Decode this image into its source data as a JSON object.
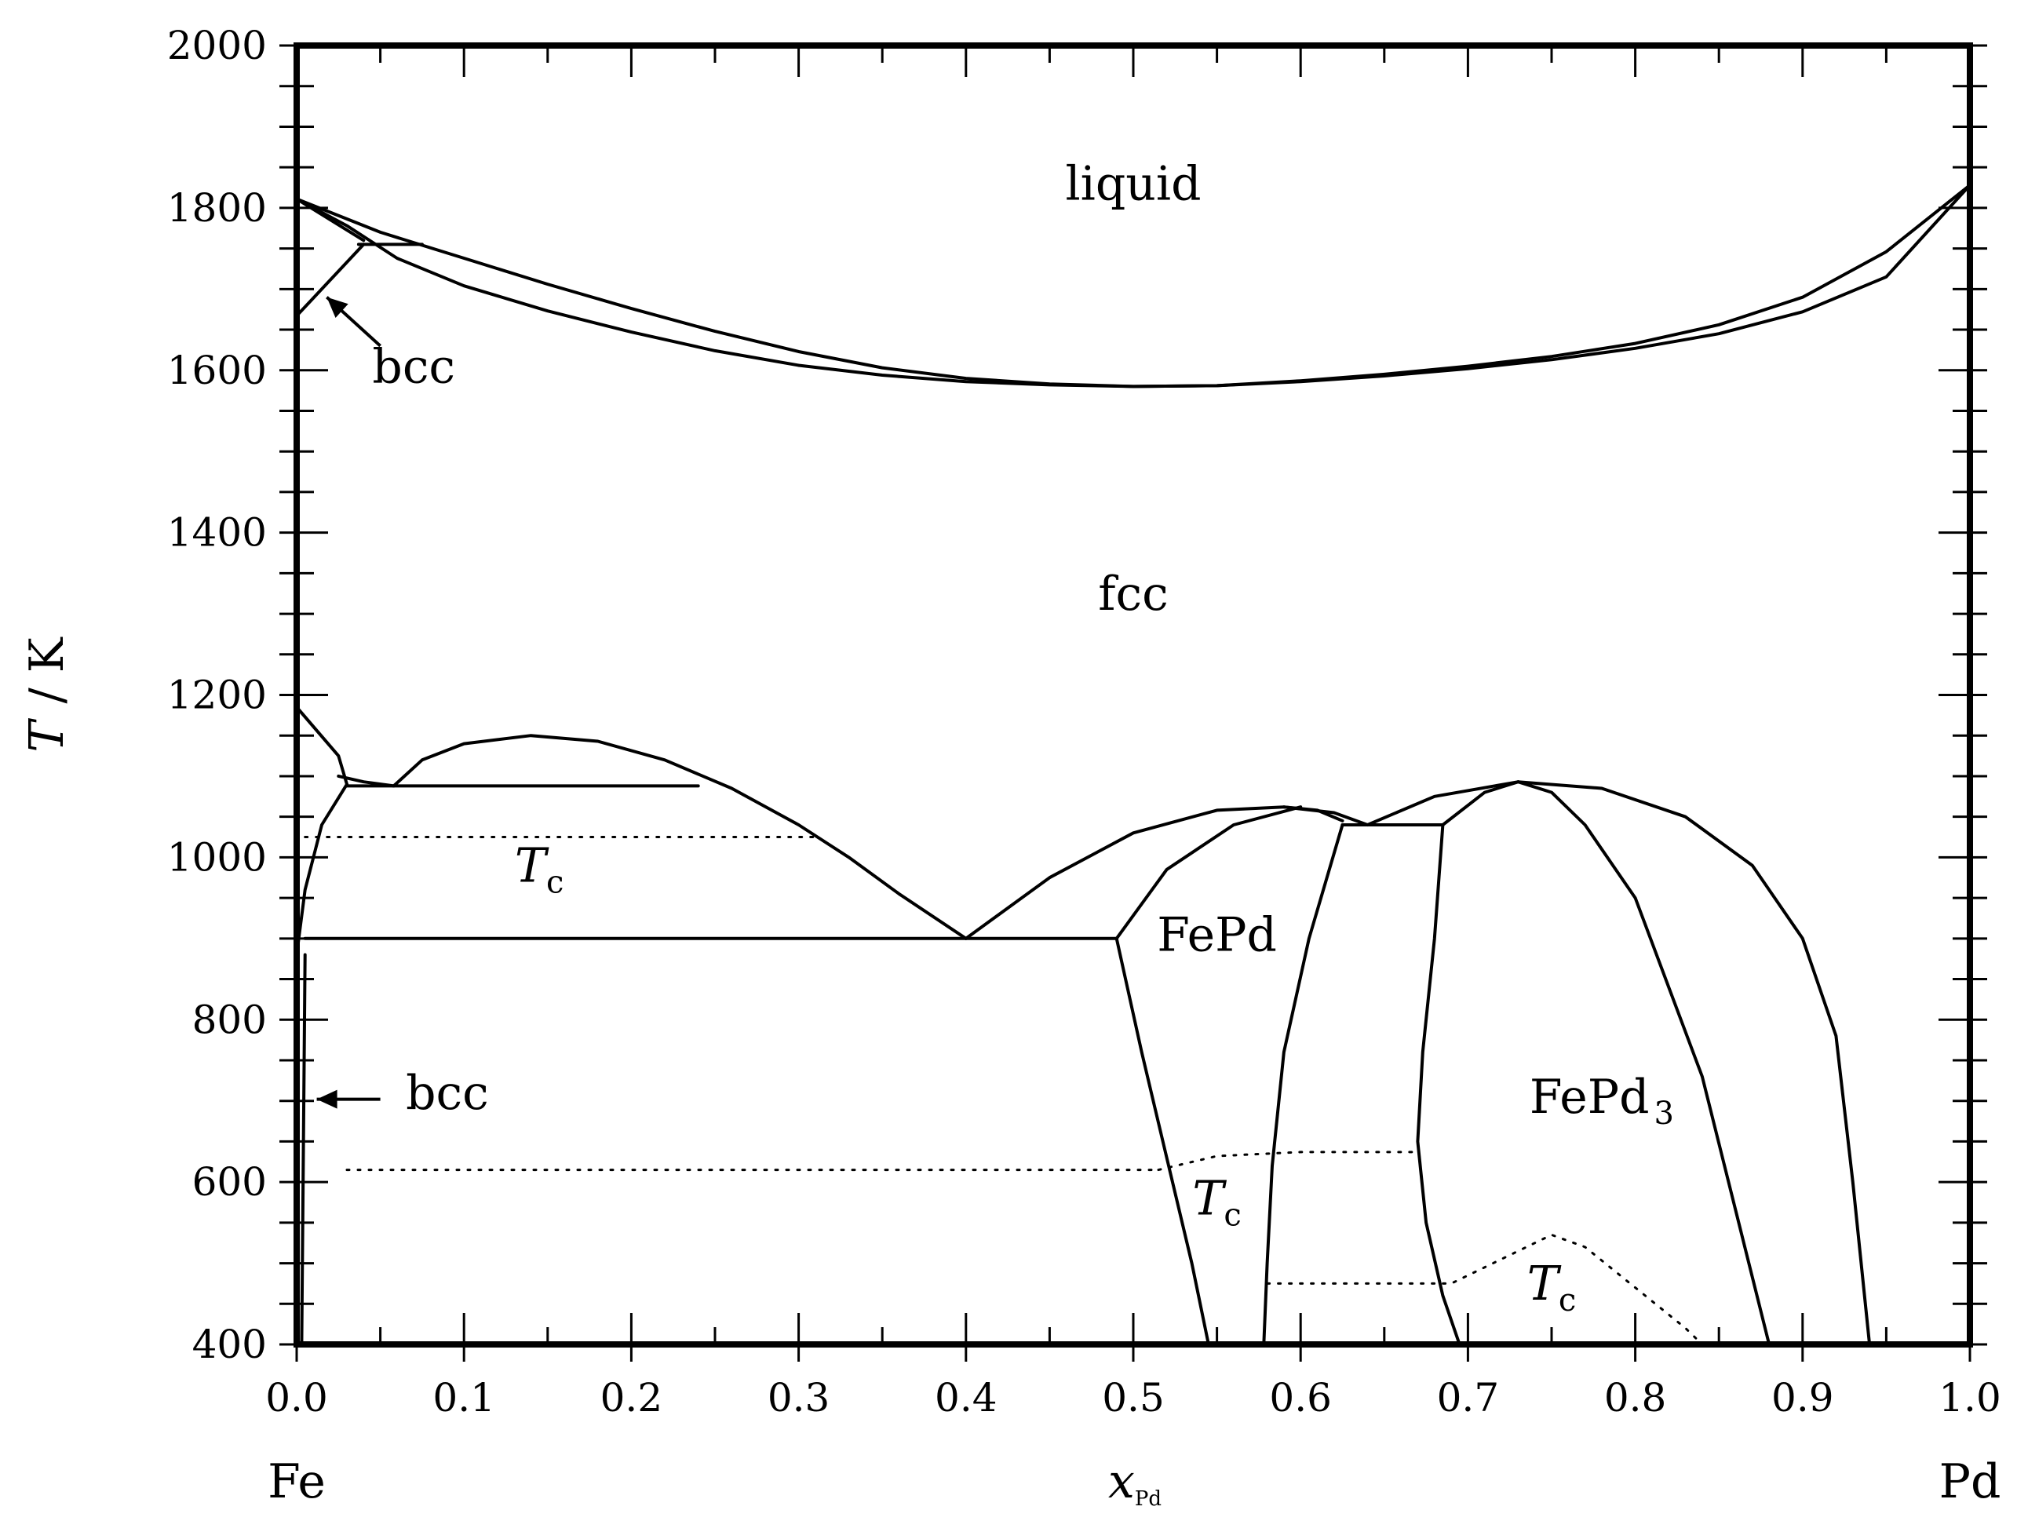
{
  "chart_data": {
    "type": "line",
    "title": "",
    "xlabel": "x",
    "xlabel_sub": "Pd",
    "ylabel_symbol": "T",
    "ylabel_unit": "/ K",
    "xlim": [
      0.0,
      1.0
    ],
    "ylim": [
      400,
      2000
    ],
    "x_ticks": [
      "0.0",
      "0.1",
      "0.2",
      "0.3",
      "0.4",
      "0.5",
      "0.6",
      "0.7",
      "0.8",
      "0.9",
      "1.0"
    ],
    "y_ticks": [
      "400",
      "600",
      "800",
      "1000",
      "1200",
      "1400",
      "1600",
      "1800",
      "2000"
    ],
    "endpoints": {
      "left": "Fe",
      "right": "Pd"
    },
    "regions": [
      {
        "label": "liquid",
        "x": 0.5,
        "y": 1810
      },
      {
        "label": "fcc",
        "x": 0.5,
        "y": 1305
      },
      {
        "label": "FePd",
        "x": 0.55,
        "y": 885
      },
      {
        "label": "FePd",
        "sub": "3",
        "x": 0.78,
        "y": 685
      },
      {
        "label": "bcc",
        "x": 0.07,
        "y": 1585
      },
      {
        "label": "bcc",
        "x": 0.09,
        "y": 690
      }
    ],
    "tc_labels": [
      {
        "symbol": "T",
        "sub": "c",
        "x": 0.145,
        "y": 970
      },
      {
        "symbol": "T",
        "sub": "c",
        "x": 0.55,
        "y": 560
      },
      {
        "symbol": "T",
        "sub": "c",
        "x": 0.75,
        "y": 455
      }
    ],
    "arrows": [
      {
        "from": [
          0.05,
          1630
        ],
        "to": [
          0.018,
          1690
        ]
      },
      {
        "from": [
          0.05,
          702
        ],
        "to": [
          0.012,
          702
        ]
      }
    ],
    "solid_curves": [
      {
        "name": "liquidus",
        "points": [
          [
            0.0,
            1811
          ],
          [
            0.05,
            1770
          ],
          [
            0.1,
            1738
          ],
          [
            0.15,
            1706
          ],
          [
            0.2,
            1676
          ],
          [
            0.25,
            1648
          ],
          [
            0.3,
            1623
          ],
          [
            0.35,
            1603
          ],
          [
            0.4,
            1590
          ],
          [
            0.45,
            1583
          ],
          [
            0.5,
            1580
          ],
          [
            0.55,
            1581
          ],
          [
            0.6,
            1587
          ],
          [
            0.65,
            1595
          ],
          [
            0.7,
            1605
          ],
          [
            0.75,
            1617
          ],
          [
            0.8,
            1633
          ],
          [
            0.85,
            1656
          ],
          [
            0.9,
            1690
          ],
          [
            0.95,
            1746
          ],
          [
            1.0,
            1828
          ]
        ]
      },
      {
        "name": "solidus",
        "points": [
          [
            0.0,
            1811
          ],
          [
            0.03,
            1778
          ],
          [
            0.06,
            1738
          ],
          [
            0.1,
            1704
          ],
          [
            0.15,
            1673
          ],
          [
            0.2,
            1647
          ],
          [
            0.25,
            1624
          ],
          [
            0.3,
            1606
          ],
          [
            0.35,
            1594
          ],
          [
            0.4,
            1586
          ],
          [
            0.45,
            1582
          ],
          [
            0.5,
            1580
          ],
          [
            0.55,
            1581
          ],
          [
            0.6,
            1586
          ],
          [
            0.65,
            1593
          ],
          [
            0.7,
            1602
          ],
          [
            0.75,
            1613
          ],
          [
            0.8,
            1627
          ],
          [
            0.85,
            1645
          ],
          [
            0.9,
            1672
          ],
          [
            0.95,
            1715
          ],
          [
            1.0,
            1828
          ]
        ]
      },
      {
        "name": "bcc-liquidus",
        "points": [
          [
            0.0,
            1811
          ],
          [
            0.04,
            1760
          ]
        ]
      },
      {
        "name": "peritectic-line",
        "points": [
          [
            0.037,
            1755
          ],
          [
            0.075,
            1755
          ]
        ]
      },
      {
        "name": "bcc-solvus-high",
        "points": [
          [
            0.0,
            1667
          ],
          [
            0.015,
            1700
          ],
          [
            0.04,
            1755
          ]
        ]
      },
      {
        "name": "gamma-alpha-left",
        "points": [
          [
            0.0,
            1185
          ],
          [
            0.025,
            1125
          ],
          [
            0.03,
            1090
          ]
        ]
      },
      {
        "name": "bcc-lower-boundary",
        "points": [
          [
            0.0,
            880
          ],
          [
            0.005,
            960
          ],
          [
            0.015,
            1040
          ],
          [
            0.03,
            1090
          ]
        ]
      },
      {
        "name": "miscibility-dome",
        "points": [
          [
            0.058,
            1088
          ],
          [
            0.075,
            1120
          ],
          [
            0.1,
            1140
          ],
          [
            0.14,
            1150
          ],
          [
            0.18,
            1143
          ],
          [
            0.22,
            1120
          ],
          [
            0.26,
            1085
          ],
          [
            0.3,
            1040
          ],
          [
            0.33,
            1000
          ],
          [
            0.36,
            955
          ],
          [
            0.4,
            900
          ]
        ]
      },
      {
        "name": "curve-to-dome",
        "points": [
          [
            0.025,
            1100
          ],
          [
            0.04,
            1093
          ],
          [
            0.058,
            1088
          ]
        ]
      },
      {
        "name": "tie-line-1088",
        "points": [
          [
            0.03,
            1088
          ],
          [
            0.24,
            1088
          ]
        ]
      },
      {
        "name": "eutectoid-line",
        "points": [
          [
            0.005,
            900
          ],
          [
            0.49,
            900
          ]
        ]
      },
      {
        "name": "fepd-order-left",
        "points": [
          [
            0.4,
            900
          ],
          [
            0.45,
            975
          ],
          [
            0.5,
            1030
          ],
          [
            0.55,
            1058
          ],
          [
            0.59,
            1062
          ],
          [
            0.62,
            1055
          ],
          [
            0.64,
            1040
          ]
        ]
      },
      {
        "name": "fepd-inner",
        "points": [
          [
            0.49,
            900
          ],
          [
            0.52,
            985
          ],
          [
            0.56,
            1040
          ],
          [
            0.6,
            1062
          ]
        ]
      },
      {
        "name": "fepd-right-top",
        "points": [
          [
            0.59,
            1062
          ],
          [
            0.61,
            1058
          ],
          [
            0.625,
            1045
          ]
        ]
      },
      {
        "name": "fepd3-dome",
        "points": [
          [
            0.64,
            1040
          ],
          [
            0.68,
            1075
          ],
          [
            0.73,
            1093
          ],
          [
            0.78,
            1085
          ],
          [
            0.83,
            1050
          ],
          [
            0.87,
            990
          ],
          [
            0.9,
            900
          ],
          [
            0.92,
            780
          ],
          [
            0.93,
            600
          ],
          [
            0.94,
            400
          ]
        ]
      },
      {
        "name": "fepd3-inner-left",
        "points": [
          [
            0.685,
            1040
          ],
          [
            0.71,
            1080
          ],
          [
            0.73,
            1093
          ]
        ]
      },
      {
        "name": "fepd3-inner-right",
        "points": [
          [
            0.73,
            1093
          ],
          [
            0.75,
            1080
          ],
          [
            0.77,
            1040
          ],
          [
            0.8,
            950
          ],
          [
            0.84,
            730
          ],
          [
            0.88,
            400
          ]
        ]
      },
      {
        "name": "tie-line-1040",
        "points": [
          [
            0.625,
            1040
          ],
          [
            0.685,
            1040
          ]
        ]
      },
      {
        "name": "fepd-phase-right",
        "points": [
          [
            0.49,
            900
          ],
          [
            0.505,
            760
          ],
          [
            0.52,
            630
          ],
          [
            0.535,
            500
          ],
          [
            0.545,
            400
          ]
        ]
      },
      {
        "name": "fepd-two-phase-left",
        "points": [
          [
            0.625,
            1040
          ],
          [
            0.605,
            900
          ],
          [
            0.59,
            760
          ],
          [
            0.583,
            620
          ],
          [
            0.58,
            500
          ],
          [
            0.578,
            400
          ]
        ]
      },
      {
        "name": "fepd3-left-boundary",
        "points": [
          [
            0.685,
            1040
          ],
          [
            0.68,
            900
          ],
          [
            0.673,
            760
          ],
          [
            0.67,
            650
          ],
          [
            0.675,
            550
          ],
          [
            0.685,
            460
          ],
          [
            0.695,
            400
          ]
        ]
      },
      {
        "name": "fe-axis-boundary",
        "points": [
          [
            0.003,
            400
          ],
          [
            0.005,
            880
          ]
        ]
      }
    ],
    "dotted_curves": [
      {
        "name": "tc-bcc-upper",
        "points": [
          [
            0.005,
            1025
          ],
          [
            0.3,
            1025
          ],
          [
            0.31,
            1025
          ]
        ]
      },
      {
        "name": "tc-bcc-lower",
        "points": [
          [
            0.03,
            615
          ],
          [
            0.515,
            615
          ]
        ]
      },
      {
        "name": "tc-fepd",
        "points": [
          [
            0.515,
            615
          ],
          [
            0.55,
            632
          ],
          [
            0.6,
            637
          ],
          [
            0.67,
            637
          ]
        ]
      },
      {
        "name": "tc-fepd3",
        "points": [
          [
            0.58,
            475
          ],
          [
            0.69,
            475
          ],
          [
            0.72,
            505
          ],
          [
            0.75,
            535
          ],
          [
            0.77,
            520
          ],
          [
            0.8,
            470
          ],
          [
            0.83,
            420
          ],
          [
            0.84,
            400
          ]
        ]
      }
    ]
  }
}
